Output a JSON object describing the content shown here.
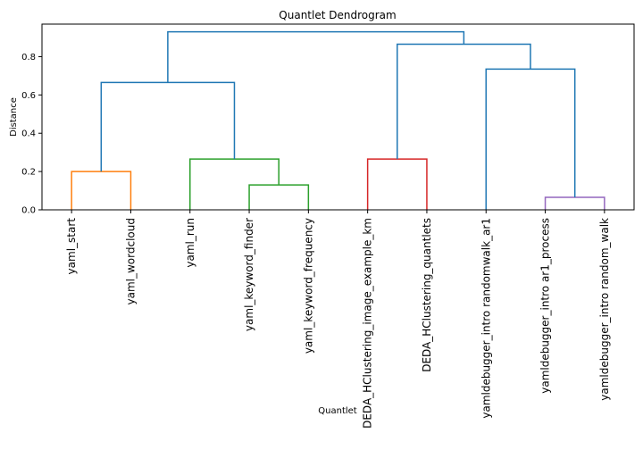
{
  "chart_data": {
    "type": "dendrogram",
    "title": "Quantlet Dendrogram",
    "xlabel": "Quantlet",
    "ylabel": "Distance",
    "ylim": [
      0,
      0.97
    ],
    "yticks": [
      0.0,
      0.2,
      0.4,
      0.6,
      0.8
    ],
    "ytick_labels": [
      "0.0",
      "0.2",
      "0.4",
      "0.6",
      "0.8"
    ],
    "grid": false,
    "leaves": [
      "yaml_start",
      "yaml_wordcloud",
      "yaml_run",
      "yaml_keyword_finder",
      "yaml_keyword_frequency",
      "DEDA_HClustering_image_example_km",
      "DEDA_HClustering_quantlets",
      "yamldebugger_intro randomwalk_ar1",
      "yamldebugger_intro ar1_process",
      "yamldebugger_intro random_walk"
    ],
    "merges": [
      {
        "left": "yaml_start",
        "right": "yaml_wordcloud",
        "height": 0.2,
        "color": "#ff7f0e"
      },
      {
        "left": "yaml_keyword_finder",
        "right": "yaml_keyword_frequency",
        "height": 0.13,
        "color": "#2ca02c"
      },
      {
        "left": "yaml_run",
        "right": "yaml_keyword_finder+yaml_keyword_frequency",
        "height": 0.265,
        "color": "#2ca02c"
      },
      {
        "left": "yaml_start+yaml_wordcloud",
        "right": "yaml_run+yaml_keyword_finder+yaml_keyword_frequency",
        "height": 0.665,
        "color": "#1f77b4"
      },
      {
        "left": "DEDA_HClustering_image_example_km",
        "right": "DEDA_HClustering_quantlets",
        "height": 0.265,
        "color": "#d62728"
      },
      {
        "left": "yamldebugger_intro ar1_process",
        "right": "yamldebugger_intro random_walk",
        "height": 0.065,
        "color": "#9467bd"
      },
      {
        "left": "yamldebugger_intro randomwalk_ar1",
        "right": "yamldebugger_intro ar1_process+yamldebugger_intro random_walk",
        "height": 0.735,
        "color": "#1f77b4"
      },
      {
        "left": "DEDA_HClustering_image_example_km+DEDA_HClustering_quantlets",
        "right": "yamldebugger_intro randomwalk_ar1+yamldebugger_intro ar1_process+yamldebugger_intro random_walk",
        "height": 0.865,
        "color": "#1f77b4"
      },
      {
        "left": "yaml_start+yaml_wordcloud+yaml_run+yaml_keyword_finder+yaml_keyword_frequency",
        "right": "DEDA_HClustering_image_example_km+DEDA_HClustering_quantlets+yamldebugger_intro randomwalk_ar1+yamldebugger_intro ar1_process+yamldebugger_intro random_walk",
        "height": 0.93,
        "color": "#1f77b4"
      }
    ]
  }
}
